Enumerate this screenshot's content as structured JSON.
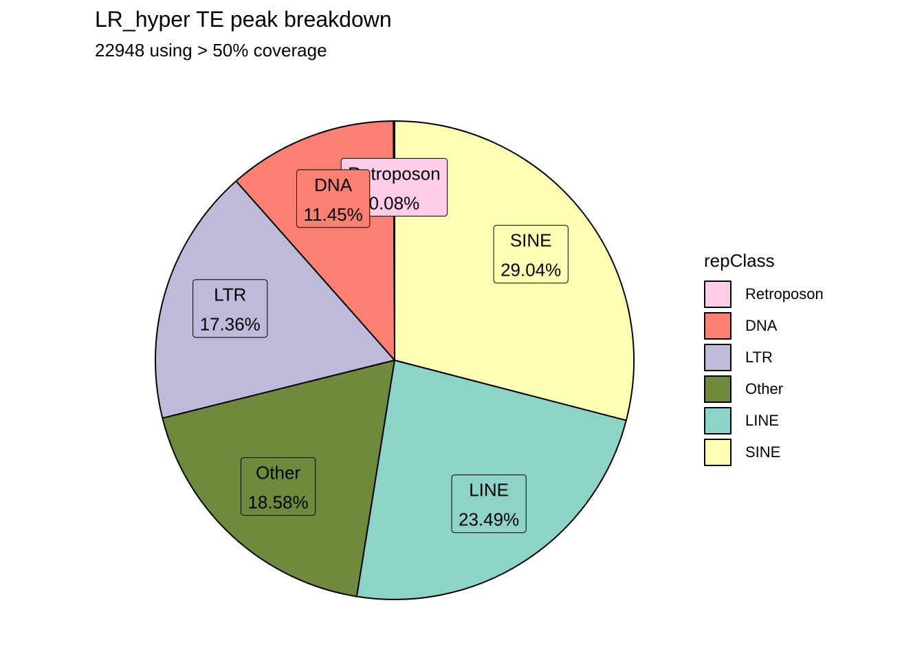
{
  "chart_data": {
    "type": "pie",
    "title": "LR_hyper TE peak breakdown",
    "subtitle": "22948 using > 50% coverage",
    "legend_title": "repClass",
    "legend_position": "right",
    "slices": [
      {
        "label": "Retroposon",
        "value": 0.08,
        "text": "0.08%",
        "color": "#FCCDE5"
      },
      {
        "label": "DNA",
        "value": 11.45,
        "text": "11.45%",
        "color": "#FB8072"
      },
      {
        "label": "LTR",
        "value": 17.36,
        "text": "17.36%",
        "color": "#BEBADA"
      },
      {
        "label": "Other",
        "value": 18.58,
        "text": "18.58%",
        "color": "#6E8B3D"
      },
      {
        "label": "LINE",
        "value": 23.49,
        "text": "23.49%",
        "color": "#8DD3C7"
      },
      {
        "label": "SINE",
        "value": 29.04,
        "text": "29.04%",
        "color": "#FFFFB3"
      }
    ]
  }
}
